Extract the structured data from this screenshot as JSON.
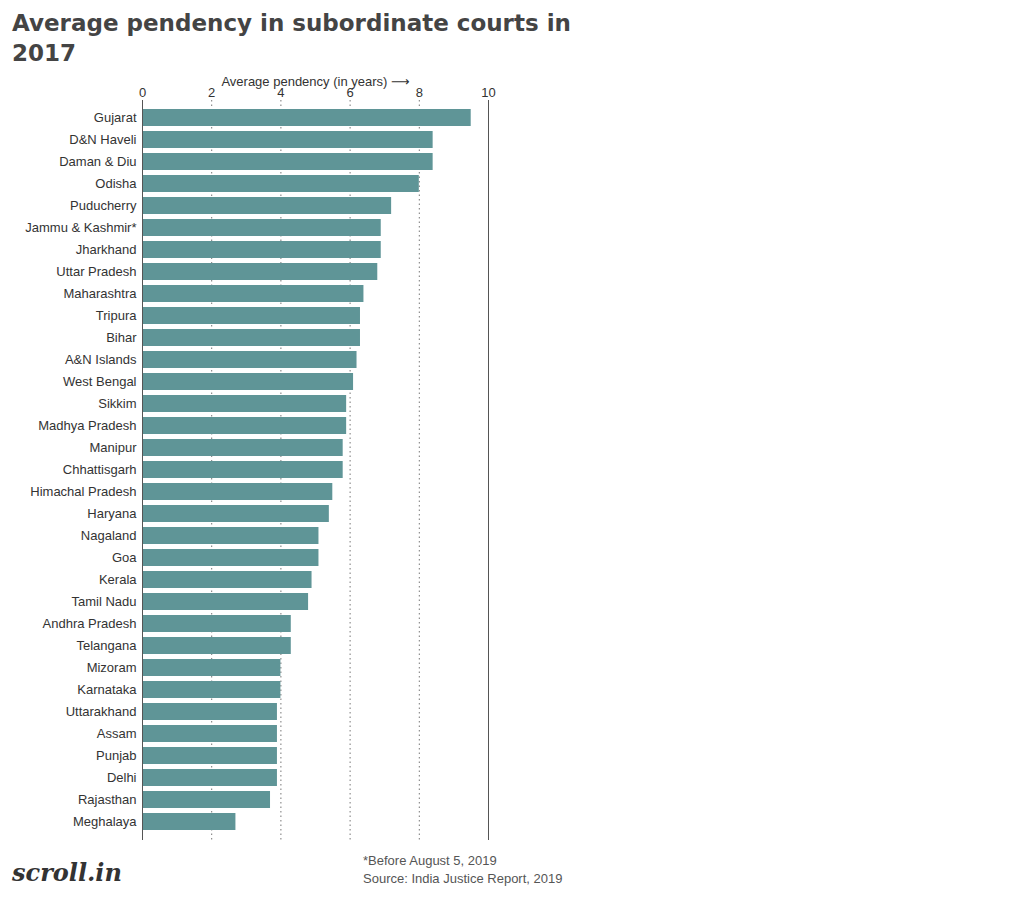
{
  "chart_data": {
    "type": "bar",
    "orientation": "horizontal",
    "title": "Average pendency in subordinate courts in 2017",
    "x_label": "Average pendency (in years) ⟶",
    "categories": [
      "Gujarat",
      "D&N Haveli",
      "Daman & Diu",
      "Odisha",
      "Puducherry",
      "Jammu & Kashmir*",
      "Jharkhand",
      "Uttar Pradesh",
      "Maharashtra",
      "Tripura",
      "Bihar",
      "A&N Islands",
      "West Bengal",
      "Sikkim",
      "Madhya Pradesh",
      "Manipur",
      "Chhattisgarh",
      "Himachal Pradesh",
      "Haryana",
      "Nagaland",
      "Goa",
      "Kerala",
      "Tamil Nadu",
      "Andhra Pradesh",
      "Telangana",
      "Mizoram",
      "Karnataka",
      "Uttarakhand",
      "Assam",
      "Punjab",
      "Delhi",
      "Rajasthan",
      "Meghalaya"
    ],
    "values": [
      9.5,
      8.4,
      8.4,
      8.0,
      7.2,
      6.9,
      6.9,
      6.8,
      6.4,
      6.3,
      6.3,
      6.2,
      6.1,
      5.9,
      5.9,
      5.8,
      5.8,
      5.5,
      5.4,
      5.1,
      5.1,
      4.9,
      4.8,
      4.3,
      4.3,
      4.0,
      4.0,
      3.9,
      3.9,
      3.9,
      3.9,
      3.7,
      2.7
    ],
    "color": "#5f9597",
    "xlim": [
      0,
      10
    ],
    "xticks": [
      0,
      2,
      4,
      6,
      8,
      10
    ],
    "grid": true,
    "annotations": [
      "scroll.in",
      "*Before August 5, 2019",
      "Source: India Justice Report, 2019"
    ]
  }
}
